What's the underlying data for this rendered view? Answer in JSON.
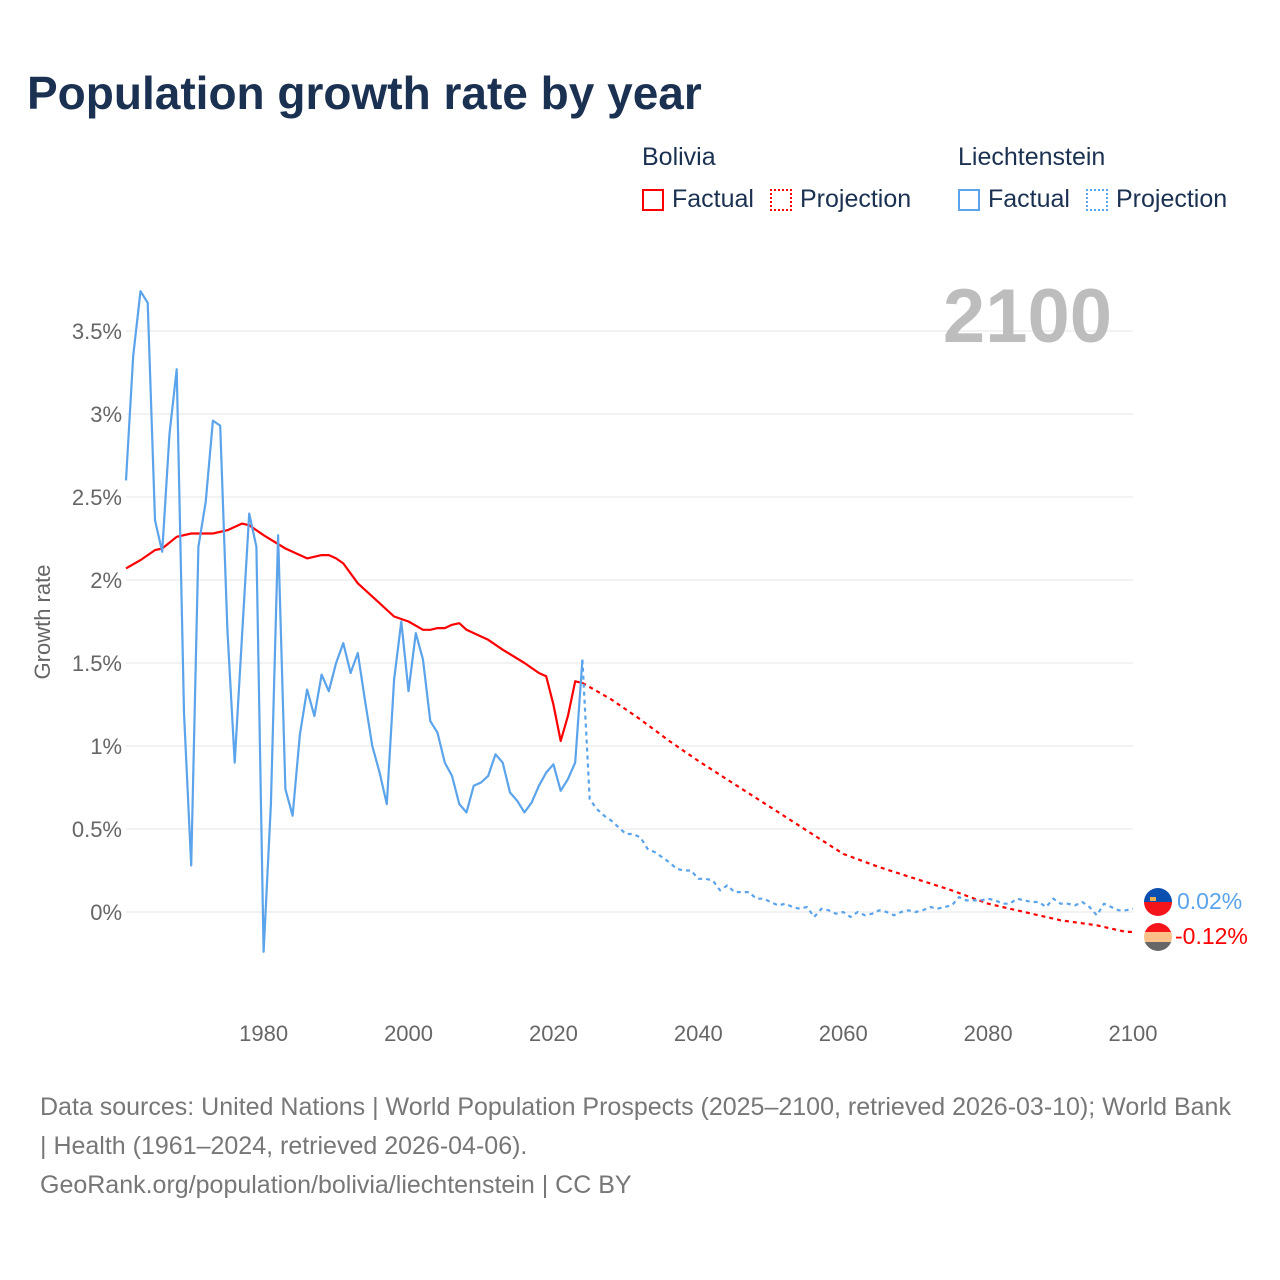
{
  "title": "Population growth rate by year",
  "legend": {
    "groups": [
      {
        "name": "Bolivia",
        "factual": "Factual",
        "projection": "Projection",
        "color": "#ff0000"
      },
      {
        "name": "Liechtenstein",
        "factual": "Factual",
        "projection": "Projection",
        "color": "#5ba3ea"
      }
    ]
  },
  "footer": {
    "sources": "Data sources: United Nations | World Population Prospects (2025–2100, retrieved 2026-03-10); World Bank | Health (1961–2024, retrieved 2026-04-06).",
    "link": "GeoRank.org/population/bolivia/liechtenstein | CC BY"
  },
  "chart_data": {
    "type": "line",
    "title": "Population growth rate by year",
    "current_year_label": "2100",
    "xlabel": "",
    "ylabel": "Growth rate",
    "xlim": [
      1961,
      2100
    ],
    "ylim": [
      -0.5,
      3.8
    ],
    "x_ticks": [
      1980,
      2000,
      2020,
      2040,
      2060,
      2080,
      2100
    ],
    "y_ticks": [
      0,
      0.5,
      1,
      1.5,
      2,
      2.5,
      3,
      3.5
    ],
    "y_tick_labels": [
      "0%",
      "0.5%",
      "1%",
      "1.5%",
      "2%",
      "2.5%",
      "3%",
      "3.5%"
    ],
    "grid": true,
    "series": [
      {
        "name": "Bolivia",
        "kind": "Factual",
        "color": "#ff0000",
        "end_label": "-0.12%",
        "points": [
          [
            1961,
            2.07
          ],
          [
            1963,
            2.12
          ],
          [
            1965,
            2.18
          ],
          [
            1966,
            2.19
          ],
          [
            1968,
            2.26
          ],
          [
            1970,
            2.28
          ],
          [
            1973,
            2.28
          ],
          [
            1975,
            2.3
          ],
          [
            1977,
            2.34
          ],
          [
            1978,
            2.33
          ],
          [
            1980,
            2.27
          ],
          [
            1983,
            2.19
          ],
          [
            1986,
            2.13
          ],
          [
            1988,
            2.15
          ],
          [
            1989,
            2.15
          ],
          [
            1990,
            2.13
          ],
          [
            1991,
            2.1
          ],
          [
            1993,
            1.98
          ],
          [
            1996,
            1.86
          ],
          [
            1998,
            1.78
          ],
          [
            2000,
            1.75
          ],
          [
            2002,
            1.7
          ],
          [
            2003,
            1.7
          ],
          [
            2004,
            1.71
          ],
          [
            2005,
            1.71
          ],
          [
            2006,
            1.73
          ],
          [
            2007,
            1.74
          ],
          [
            2008,
            1.7
          ],
          [
            2011,
            1.64
          ],
          [
            2013,
            1.58
          ],
          [
            2016,
            1.5
          ],
          [
            2018,
            1.44
          ],
          [
            2019,
            1.42
          ],
          [
            2020,
            1.25
          ],
          [
            2021,
            1.03
          ],
          [
            2022,
            1.18
          ],
          [
            2023,
            1.39
          ],
          [
            2024,
            1.38
          ]
        ]
      },
      {
        "name": "Bolivia",
        "kind": "Projection",
        "color": "#ff0000",
        "points": [
          [
            2024,
            1.38
          ],
          [
            2028,
            1.28
          ],
          [
            2032,
            1.16
          ],
          [
            2036,
            1.03
          ],
          [
            2040,
            0.91
          ],
          [
            2045,
            0.77
          ],
          [
            2050,
            0.63
          ],
          [
            2055,
            0.49
          ],
          [
            2060,
            0.35
          ],
          [
            2065,
            0.27
          ],
          [
            2070,
            0.2
          ],
          [
            2075,
            0.13
          ],
          [
            2080,
            0.05
          ],
          [
            2085,
            0.0
          ],
          [
            2090,
            -0.05
          ],
          [
            2095,
            -0.08
          ],
          [
            2099,
            -0.12
          ],
          [
            2100,
            -0.12
          ]
        ]
      },
      {
        "name": "Liechtenstein",
        "kind": "Factual",
        "color": "#5ba3ea",
        "end_label": "0.02%",
        "points": [
          [
            1961,
            2.6
          ],
          [
            1962,
            3.35
          ],
          [
            1963,
            3.74
          ],
          [
            1964,
            3.67
          ],
          [
            1965,
            2.36
          ],
          [
            1966,
            2.17
          ],
          [
            1967,
            2.88
          ],
          [
            1968,
            3.27
          ],
          [
            1969,
            1.2
          ],
          [
            1970,
            0.28
          ],
          [
            1971,
            2.2
          ],
          [
            1972,
            2.47
          ],
          [
            1973,
            2.96
          ],
          [
            1974,
            2.93
          ],
          [
            1975,
            1.7
          ],
          [
            1976,
            0.9
          ],
          [
            1977,
            1.65
          ],
          [
            1978,
            2.4
          ],
          [
            1979,
            2.2
          ],
          [
            1980,
            -0.24
          ],
          [
            1981,
            0.65
          ],
          [
            1982,
            2.27
          ],
          [
            1983,
            0.74
          ],
          [
            1984,
            0.58
          ],
          [
            1985,
            1.07
          ],
          [
            1986,
            1.34
          ],
          [
            1987,
            1.18
          ],
          [
            1988,
            1.43
          ],
          [
            1989,
            1.33
          ],
          [
            1990,
            1.5
          ],
          [
            1991,
            1.62
          ],
          [
            1992,
            1.44
          ],
          [
            1993,
            1.56
          ],
          [
            1994,
            1.27
          ],
          [
            1995,
            1.0
          ],
          [
            1996,
            0.84
          ],
          [
            1997,
            0.65
          ],
          [
            1998,
            1.4
          ],
          [
            1999,
            1.75
          ],
          [
            2000,
            1.33
          ],
          [
            2001,
            1.68
          ],
          [
            2002,
            1.52
          ],
          [
            2003,
            1.15
          ],
          [
            2004,
            1.08
          ],
          [
            2005,
            0.9
          ],
          [
            2006,
            0.82
          ],
          [
            2007,
            0.65
          ],
          [
            2008,
            0.6
          ],
          [
            2009,
            0.76
          ],
          [
            2010,
            0.78
          ],
          [
            2011,
            0.82
          ],
          [
            2012,
            0.95
          ],
          [
            2013,
            0.9
          ],
          [
            2014,
            0.72
          ],
          [
            2015,
            0.67
          ],
          [
            2016,
            0.6
          ],
          [
            2017,
            0.66
          ],
          [
            2018,
            0.76
          ],
          [
            2019,
            0.84
          ],
          [
            2020,
            0.89
          ],
          [
            2021,
            0.73
          ],
          [
            2022,
            0.8
          ],
          [
            2023,
            0.9
          ],
          [
            2024,
            1.52
          ]
        ]
      },
      {
        "name": "Liechtenstein",
        "kind": "Projection",
        "color": "#5ba3ea",
        "points": [
          [
            2024,
            1.52
          ],
          [
            2025,
            0.68
          ],
          [
            2026,
            0.62
          ],
          [
            2027,
            0.58
          ],
          [
            2028,
            0.55
          ],
          [
            2029,
            0.51
          ],
          [
            2030,
            0.47
          ],
          [
            2031,
            0.47
          ],
          [
            2032,
            0.45
          ],
          [
            2033,
            0.38
          ],
          [
            2034,
            0.36
          ],
          [
            2035,
            0.33
          ],
          [
            2036,
            0.3
          ],
          [
            2037,
            0.26
          ],
          [
            2038,
            0.25
          ],
          [
            2039,
            0.25
          ],
          [
            2040,
            0.2
          ],
          [
            2041,
            0.2
          ],
          [
            2042,
            0.19
          ],
          [
            2043,
            0.13
          ],
          [
            2044,
            0.16
          ],
          [
            2045,
            0.12
          ],
          [
            2046,
            0.12
          ],
          [
            2047,
            0.12
          ],
          [
            2048,
            0.08
          ],
          [
            2049,
            0.08
          ],
          [
            2050,
            0.06
          ],
          [
            2051,
            0.04
          ],
          [
            2052,
            0.05
          ],
          [
            2053,
            0.03
          ],
          [
            2054,
            0.02
          ],
          [
            2055,
            0.03
          ],
          [
            2056,
            -0.03
          ],
          [
            2057,
            0.02
          ],
          [
            2058,
            0.01
          ],
          [
            2059,
            -0.01
          ],
          [
            2060,
            0.0
          ],
          [
            2061,
            -0.03
          ],
          [
            2062,
            0.0
          ],
          [
            2063,
            -0.02
          ],
          [
            2064,
            -0.01
          ],
          [
            2065,
            0.01
          ],
          [
            2066,
            0.0
          ],
          [
            2067,
            -0.02
          ],
          [
            2068,
            0.0
          ],
          [
            2069,
            0.01
          ],
          [
            2070,
            0.0
          ],
          [
            2071,
            0.01
          ],
          [
            2072,
            0.03
          ],
          [
            2073,
            0.02
          ],
          [
            2074,
            0.03
          ],
          [
            2075,
            0.04
          ],
          [
            2076,
            0.09
          ],
          [
            2077,
            0.07
          ],
          [
            2078,
            0.07
          ],
          [
            2079,
            0.07
          ],
          [
            2080,
            0.08
          ],
          [
            2081,
            0.07
          ],
          [
            2082,
            0.05
          ],
          [
            2083,
            0.05
          ],
          [
            2084,
            0.08
          ],
          [
            2085,
            0.07
          ],
          [
            2086,
            0.06
          ],
          [
            2087,
            0.06
          ],
          [
            2088,
            0.03
          ],
          [
            2089,
            0.08
          ],
          [
            2090,
            0.05
          ],
          [
            2091,
            0.05
          ],
          [
            2092,
            0.04
          ],
          [
            2093,
            0.06
          ],
          [
            2094,
            0.03
          ],
          [
            2095,
            -0.02
          ],
          [
            2096,
            0.05
          ],
          [
            2097,
            0.03
          ],
          [
            2098,
            0.01
          ],
          [
            2099,
            0.01
          ],
          [
            2100,
            0.02
          ]
        ]
      }
    ]
  }
}
